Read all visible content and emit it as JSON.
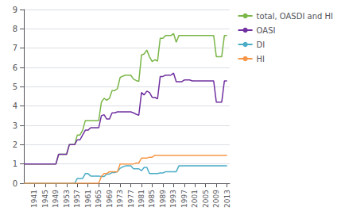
{
  "chart_data": {
    "type": "line",
    "x": [
      1937,
      1938,
      1939,
      1940,
      1941,
      1942,
      1943,
      1944,
      1945,
      1946,
      1947,
      1948,
      1949,
      1950,
      1951,
      1952,
      1953,
      1954,
      1955,
      1956,
      1957,
      1958,
      1959,
      1960,
      1961,
      1962,
      1963,
      1964,
      1965,
      1966,
      1967,
      1968,
      1969,
      1970,
      1971,
      1972,
      1973,
      1974,
      1975,
      1976,
      1977,
      1978,
      1979,
      1980,
      1981,
      1982,
      1983,
      1984,
      1985,
      1986,
      1987,
      1988,
      1989,
      1990,
      1991,
      1992,
      1993,
      1994,
      1995,
      1996,
      1997,
      1998,
      1999,
      2000,
      2001,
      2002,
      2003,
      2004,
      2005,
      2006,
      2007,
      2008,
      2009,
      2010,
      2011,
      2012,
      2013
    ],
    "series": [
      {
        "name": "total, OASDI and HI",
        "color": "#7ab648",
        "values": [
          1.0,
          1.0,
          1.0,
          1.0,
          1.0,
          1.0,
          1.0,
          1.0,
          1.0,
          1.0,
          1.0,
          1.0,
          1.0,
          1.5,
          1.5,
          1.5,
          1.5,
          2.0,
          2.0,
          2.0,
          2.5,
          2.5,
          2.75,
          3.25,
          3.25,
          3.25,
          3.25,
          3.25,
          3.25,
          4.2,
          4.4,
          4.3,
          4.4,
          4.8,
          4.8,
          4.9,
          5.475,
          5.55,
          5.6,
          5.6,
          5.6,
          5.4,
          5.325,
          5.275,
          6.65,
          6.7,
          6.9,
          6.55,
          6.3,
          6.4,
          6.325,
          7.51,
          7.51,
          7.65,
          7.65,
          7.65,
          7.755,
          7.305,
          7.655,
          7.655,
          7.65,
          7.65,
          7.65,
          7.65,
          7.65,
          7.65,
          7.65,
          7.65,
          7.65,
          7.65,
          7.65,
          7.65,
          6.55,
          6.55,
          6.55,
          7.65,
          7.65
        ]
      },
      {
        "name": "OASI",
        "color": "#7030a0",
        "values": [
          1.0,
          1.0,
          1.0,
          1.0,
          1.0,
          1.0,
          1.0,
          1.0,
          1.0,
          1.0,
          1.0,
          1.0,
          1.0,
          1.5,
          1.5,
          1.5,
          1.5,
          2.0,
          2.0,
          2.0,
          2.25,
          2.25,
          2.5,
          2.75,
          2.75,
          2.875,
          2.875,
          2.875,
          2.875,
          3.5,
          3.55,
          3.325,
          3.325,
          3.65,
          3.65,
          3.7,
          3.7,
          3.7,
          3.7,
          3.7,
          3.7,
          3.65,
          3.575,
          3.525,
          4.7,
          4.575,
          4.775,
          4.7,
          4.45,
          4.45,
          4.375,
          5.53,
          5.53,
          5.6,
          5.6,
          5.6,
          5.705,
          5.26,
          5.26,
          5.26,
          5.35,
          5.35,
          5.35,
          5.3,
          5.3,
          5.3,
          5.3,
          5.3,
          5.3,
          5.3,
          5.3,
          5.3,
          4.2,
          4.2,
          4.2,
          5.3,
          5.3
        ]
      },
      {
        "name": "DI",
        "color": "#4bacc6",
        "values": [
          0.0,
          0.0,
          0.0,
          0.0,
          0.0,
          0.0,
          0.0,
          0.0,
          0.0,
          0.0,
          0.0,
          0.0,
          0.0,
          0.0,
          0.0,
          0.0,
          0.0,
          0.0,
          0.0,
          0.0,
          0.25,
          0.25,
          0.25,
          0.5,
          0.5,
          0.375,
          0.375,
          0.375,
          0.375,
          0.35,
          0.35,
          0.475,
          0.475,
          0.55,
          0.55,
          0.6,
          0.775,
          0.85,
          0.9,
          0.9,
          0.9,
          0.75,
          0.75,
          0.75,
          0.65,
          0.825,
          0.825,
          0.5,
          0.5,
          0.5,
          0.5,
          0.53,
          0.53,
          0.6,
          0.6,
          0.6,
          0.6,
          0.6,
          0.9,
          0.9,
          0.9,
          0.9,
          0.9,
          0.9,
          0.9,
          0.9,
          0.9,
          0.9,
          0.9,
          0.9,
          0.9,
          0.9,
          0.9,
          0.9,
          0.9,
          0.9,
          0.9
        ]
      },
      {
        "name": "HI",
        "color": "#f79646",
        "values": [
          0.0,
          0.0,
          0.0,
          0.0,
          0.0,
          0.0,
          0.0,
          0.0,
          0.0,
          0.0,
          0.0,
          0.0,
          0.0,
          0.0,
          0.0,
          0.0,
          0.0,
          0.0,
          0.0,
          0.0,
          0.0,
          0.0,
          0.0,
          0.0,
          0.0,
          0.0,
          0.0,
          0.0,
          0.0,
          0.35,
          0.5,
          0.5,
          0.6,
          0.6,
          0.6,
          0.6,
          1.0,
          1.0,
          1.0,
          1.0,
          1.0,
          1.0,
          1.05,
          1.05,
          1.3,
          1.3,
          1.3,
          1.35,
          1.35,
          1.45,
          1.45,
          1.45,
          1.45,
          1.45,
          1.45,
          1.45,
          1.45,
          1.45,
          1.45,
          1.45,
          1.45,
          1.45,
          1.45,
          1.45,
          1.45,
          1.45,
          1.45,
          1.45,
          1.45,
          1.45,
          1.45,
          1.45,
          1.45,
          1.45,
          1.45,
          1.45,
          1.45
        ]
      }
    ],
    "xlim": [
      1937,
      2014
    ],
    "xticks": [
      1941,
      1945,
      1949,
      1953,
      1957,
      1961,
      1965,
      1969,
      1973,
      1977,
      1981,
      1985,
      1989,
      1993,
      1997,
      2001,
      2005,
      2009,
      2013
    ],
    "ylim": [
      0,
      9
    ],
    "yticks": [
      0,
      1,
      2,
      3,
      4,
      5,
      6,
      7,
      8,
      9
    ],
    "grid": "y",
    "legend": "right"
  }
}
